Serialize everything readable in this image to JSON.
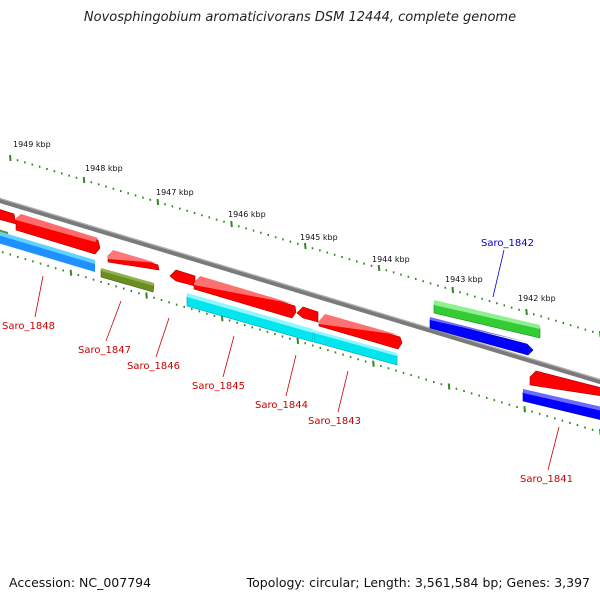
{
  "title": "Novosphingobium aromaticivorans DSM 12444, complete genome",
  "footer": {
    "accession": "Accession: NC_007794",
    "summary": "Topology: circular; Length: 3,561,584 bp; Genes: 3,397"
  },
  "kbp_labels": [
    "1949 kbp",
    "1948 kbp",
    "1947 kbp",
    "1946 kbp",
    "1945 kbp",
    "1944 kbp",
    "1943 kbp",
    "1942 kbp"
  ],
  "gene_labels": [
    {
      "name": "Saro_1848",
      "strand": "minus"
    },
    {
      "name": "Saro_1847",
      "strand": "minus"
    },
    {
      "name": "Saro_1846",
      "strand": "minus"
    },
    {
      "name": "Saro_1845",
      "strand": "minus"
    },
    {
      "name": "Saro_1844",
      "strand": "minus"
    },
    {
      "name": "Saro_1843",
      "strand": "minus"
    },
    {
      "name": "Saro_1842",
      "strand": "plus"
    },
    {
      "name": "Saro_1841",
      "strand": "minus"
    }
  ],
  "colors": {
    "backbone": "#8a8a8a",
    "ticks": "#2f8a1f",
    "minus_label": "#cc0000",
    "plus_label": "#0000cc",
    "red_feature": "#ff0000",
    "olive_feature": "#6b8e23",
    "cyan_feature": "#00e5ee",
    "green_feature": "#33cc33",
    "blue_feature": "#0000ff",
    "steelblue_feature": "#1e90ff"
  }
}
